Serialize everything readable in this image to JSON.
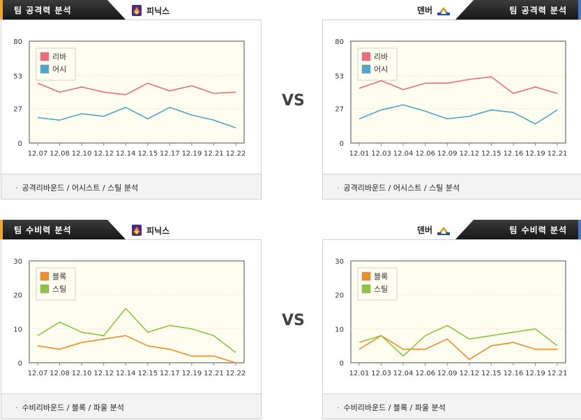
{
  "sections": {
    "attack_title": "팀 공격력 분석",
    "defense_title": "팀 수비력 분석",
    "vs_label": "VS",
    "accent_colors": {
      "left": "#f5a623",
      "right": "#3a7bd5"
    }
  },
  "teams": {
    "left": "피닉스",
    "right": "덴버"
  },
  "footers": {
    "attack": "공격리바운드 / 어시스트 / 스틸 분석",
    "defense": "수비리바운드 / 블록 / 파울 분석"
  },
  "icons": {
    "left_team_logo": "phoenix-logo-icon",
    "right_team_logo": "denver-logo-icon"
  },
  "chart_data": [
    {
      "type": "line",
      "id": "phoenix-attack",
      "x": [
        "12.07",
        "12.08",
        "12.10",
        "12.12",
        "12.14",
        "12.15",
        "12.17",
        "12.19",
        "12.21",
        "12.22"
      ],
      "ylim": [
        0,
        80
      ],
      "yticks": [
        0,
        27,
        53,
        80
      ],
      "series": [
        {
          "name": "리바",
          "color": "#f06a7a",
          "values": [
            47,
            40,
            44,
            40,
            38,
            47,
            41,
            45,
            39,
            40
          ]
        },
        {
          "name": "어시",
          "color": "#4aa8c8",
          "values": [
            20,
            18,
            23,
            21,
            28,
            19,
            28,
            22,
            18,
            12
          ]
        }
      ],
      "legend": "top-left"
    },
    {
      "type": "line",
      "id": "denver-attack",
      "x": [
        "12.01",
        "12.03",
        "12.04",
        "12.06",
        "12.09",
        "12.12",
        "12.15",
        "12.16",
        "12.19",
        "12.21"
      ],
      "ylim": [
        0,
        80
      ],
      "yticks": [
        0,
        27,
        53,
        80
      ],
      "series": [
        {
          "name": "리바",
          "color": "#f06a7a",
          "values": [
            43,
            49,
            42,
            47,
            47,
            50,
            52,
            39,
            44,
            39
          ]
        },
        {
          "name": "어시",
          "color": "#4aa8c8",
          "values": [
            19,
            26,
            30,
            25,
            19,
            21,
            26,
            24,
            15,
            26
          ]
        }
      ],
      "legend": "top-left"
    },
    {
      "type": "line",
      "id": "phoenix-defense",
      "x": [
        "12.07",
        "12.08",
        "12.10",
        "12.12",
        "12.14",
        "12.15",
        "12.17",
        "12.19",
        "12.21",
        "12.22"
      ],
      "ylim": [
        0,
        30
      ],
      "yticks": [
        0,
        10,
        20,
        30
      ],
      "series": [
        {
          "name": "블록",
          "color": "#f28c28",
          "values": [
            5,
            4,
            6,
            7,
            8,
            5,
            4,
            2,
            2,
            0
          ]
        },
        {
          "name": "스틸",
          "color": "#8cc63f",
          "values": [
            8,
            12,
            9,
            8,
            16,
            9,
            11,
            10,
            8,
            3
          ]
        }
      ],
      "legend": "top-left"
    },
    {
      "type": "line",
      "id": "denver-defense",
      "x": [
        "12.01",
        "12.03",
        "12.04",
        "12.06",
        "12.09",
        "12.12",
        "12.15",
        "12.16",
        "12.19",
        "12.21"
      ],
      "ylim": [
        0,
        30
      ],
      "yticks": [
        0,
        10,
        20,
        30
      ],
      "series": [
        {
          "name": "블록",
          "color": "#f28c28",
          "values": [
            4,
            8,
            4,
            4,
            7,
            1,
            5,
            6,
            4,
            4
          ]
        },
        {
          "name": "스틸",
          "color": "#8cc63f",
          "values": [
            6,
            8,
            2,
            8,
            11,
            7,
            8,
            9,
            10,
            5
          ]
        }
      ],
      "legend": "top-left"
    }
  ]
}
